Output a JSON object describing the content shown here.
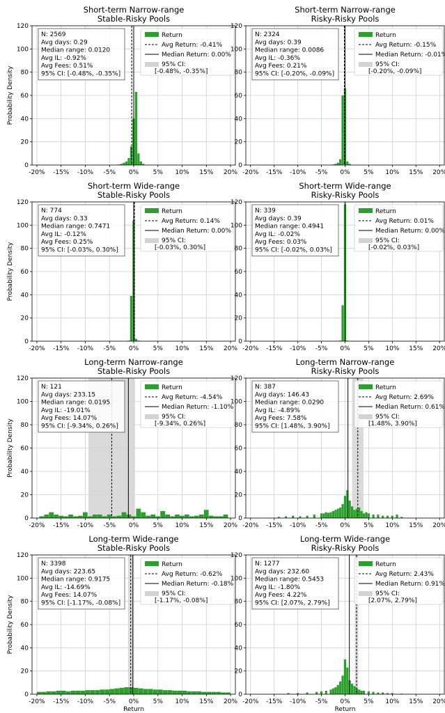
{
  "figure": {
    "ylabel": "Probability Density",
    "xlabel": "Return",
    "colors": {
      "bar": "#2ca02c",
      "ci": "#d3d3d3",
      "line": "#000000"
    }
  },
  "chart_data": [
    {
      "type": "bar",
      "title": [
        "Short-term Narrow-range",
        "Stable-Risky Pools"
      ],
      "xlabel": "",
      "ylabel": "Probability Density",
      "xlim": [
        -0.21,
        0.21
      ],
      "ylim": [
        0,
        120
      ],
      "xticks": [
        -0.2,
        -0.15,
        -0.1,
        -0.05,
        0,
        0.05,
        0.1,
        0.15,
        0.2
      ],
      "xtick_labels": [
        "-20%",
        "-15%",
        "-10%",
        "-5%",
        "0%",
        "5%",
        "10%",
        "15%",
        "20%"
      ],
      "yticks": [
        0,
        20,
        40,
        60,
        80,
        100,
        120
      ],
      "grid": true,
      "legend": "top-right",
      "stats": [
        "N: 2569",
        "Avg days: 0.29",
        "Median range: 0.0120",
        "Avg IL: -0.92%",
        "Avg Fees: 0.51%",
        "95% CI: [-0.48%, -0.35%]"
      ],
      "legend_entries": [
        "Return",
        "Avg Return: -0.41%",
        "Median Return: 0.00%",
        "95% CI:",
        "[-0.48%, -0.35%]"
      ],
      "avg": -0.0041,
      "median": 0.0,
      "ci": [
        -0.0048,
        -0.0035
      ],
      "bin_width": 0.005,
      "x": [
        -0.03,
        -0.025,
        -0.02,
        -0.015,
        -0.01,
        -0.005,
        0.0,
        0.005,
        0.01,
        0.015,
        0.02
      ],
      "values": [
        0.5,
        1,
        2,
        3,
        6,
        16,
        40,
        63,
        10,
        3,
        1
      ]
    },
    {
      "type": "bar",
      "title": [
        "Short-term Narrow-range",
        "Risky-Risky Pools"
      ],
      "xlabel": "",
      "ylabel": "",
      "xlim": [
        -0.21,
        0.21
      ],
      "ylim": [
        0,
        120
      ],
      "xticks": [
        -0.2,
        -0.15,
        -0.1,
        -0.05,
        0,
        0.05,
        0.1,
        0.15,
        0.2
      ],
      "xtick_labels": [
        "-20%",
        "-15%",
        "-10%",
        "-5%",
        "0%",
        "5%",
        "10%",
        "15%",
        "20%"
      ],
      "yticks": [
        0,
        20,
        40,
        60,
        80,
        100,
        120
      ],
      "grid": true,
      "legend": "top-right",
      "stats": [
        "N: 2324",
        "Avg days: 0.39",
        "Median range: 0.0086",
        "Avg IL: -0.36%",
        "Avg Fees: 0.21%",
        "95% CI: [-0.20%, -0.09%]"
      ],
      "legend_entries": [
        "Return",
        "Avg Return: -0.15%",
        "Median Return: -0.01%",
        "95% CI:",
        "[-0.20%, -0.09%]"
      ],
      "avg": -0.0015,
      "median": -0.0001,
      "ci": [
        -0.002,
        -0.0009
      ],
      "bin_width": 0.005,
      "x": [
        -0.025,
        -0.02,
        -0.015,
        -0.01,
        -0.005,
        0.0,
        0.005,
        0.01
      ],
      "values": [
        0.5,
        1,
        2,
        5,
        60,
        66,
        3,
        1
      ]
    },
    {
      "type": "bar",
      "title": [
        "Short-term Wide-range",
        "Stable-Risky Pools"
      ],
      "xlabel": "",
      "ylabel": "Probability Density",
      "xlim": [
        -0.21,
        0.21
      ],
      "ylim": [
        0,
        120
      ],
      "xticks": [
        -0.2,
        -0.15,
        -0.1,
        -0.05,
        0,
        0.05,
        0.1,
        0.15,
        0.2
      ],
      "xtick_labels": [
        "-20%",
        "-15%",
        "-10%",
        "-5%",
        "0%",
        "5%",
        "10%",
        "15%",
        "20%"
      ],
      "yticks": [
        0,
        20,
        40,
        60,
        80,
        100,
        120
      ],
      "grid": true,
      "legend": "top-right",
      "stats": [
        "N: 774",
        "Avg days: 0.33",
        "Median range: 0.7471",
        "Avg IL: -0.12%",
        "Avg Fees: 0.25%",
        "95% CI: [-0.03%, 0.30%]"
      ],
      "legend_entries": [
        "Return",
        "Avg Return: 0.14%",
        "Median Return: 0.00%",
        "95% CI:",
        "[-0.03%, 0.30%]"
      ],
      "avg": 0.0014,
      "median": 0.0,
      "ci": [
        -0.0003,
        0.003
      ],
      "bin_width": 0.005,
      "x": [
        -0.01,
        -0.005,
        0.0,
        0.005,
        0.01
      ],
      "values": [
        0.5,
        39,
        104,
        2,
        0.5
      ]
    },
    {
      "type": "bar",
      "title": [
        "Short-term Wide-range",
        "Risky-Risky Pools"
      ],
      "xlabel": "",
      "ylabel": "",
      "xlim": [
        -0.21,
        0.21
      ],
      "ylim": [
        0,
        120
      ],
      "xticks": [
        -0.2,
        -0.15,
        -0.1,
        -0.05,
        0,
        0.05,
        0.1,
        0.15,
        0.2
      ],
      "xtick_labels": [
        "-20%",
        "-15%",
        "-10%",
        "-5%",
        "0%",
        "5%",
        "10%",
        "15%",
        "20%"
      ],
      "yticks": [
        0,
        20,
        40,
        60,
        80,
        100,
        120
      ],
      "grid": true,
      "legend": "top-right",
      "stats": [
        "N: 339",
        "Avg days: 0.39",
        "Median range: 0.4941",
        "Avg IL: -0.02%",
        "Avg Fees: 0.03%",
        "95% CI: [-0.02%, 0.03%]"
      ],
      "legend_entries": [
        "Return",
        "Avg Return: 0.01%",
        "Median Return: 0.00%",
        "95% CI:",
        "[-0.02%, 0.03%]"
      ],
      "avg": 0.0001,
      "median": 0.0,
      "ci": [
        -0.0002,
        0.0003
      ],
      "bin_width": 0.005,
      "x": [
        -0.01,
        -0.005,
        0.0,
        0.005
      ],
      "values": [
        0.5,
        31,
        118,
        0.5
      ]
    },
    {
      "type": "bar",
      "title": [
        "Long-term Narrow-range",
        "Stable-Risky Pools"
      ],
      "xlabel": "",
      "ylabel": "Probability Density",
      "xlim": [
        -0.21,
        0.21
      ],
      "ylim": [
        0,
        120
      ],
      "xticks": [
        -0.2,
        -0.15,
        -0.1,
        -0.05,
        0,
        0.05,
        0.1,
        0.15,
        0.2
      ],
      "xtick_labels": [
        "-20%",
        "-15%",
        "-10%",
        "-5%",
        "0%",
        "5%",
        "10%",
        "15%",
        "20%"
      ],
      "yticks": [
        0,
        20,
        40,
        60,
        80,
        100,
        120
      ],
      "grid": true,
      "legend": "top-right",
      "stats": [
        "N: 121",
        "Avg days: 233.15",
        "Median range: 0.0195",
        "Avg IL: -19.01%",
        "Avg Fees: 14.07%",
        "95% CI: [-9.34%, 0.26%]"
      ],
      "legend_entries": [
        "Return",
        "Avg Return: -4.54%",
        "Median Return: -1.10%",
        "95% CI:",
        "[-9.34%, 0.26%]"
      ],
      "avg": -0.0454,
      "median": -0.011,
      "ci": [
        -0.0934,
        0.0026
      ],
      "bin_width": 0.01,
      "x": [
        -0.19,
        -0.18,
        -0.17,
        -0.16,
        -0.15,
        -0.14,
        -0.13,
        -0.12,
        -0.11,
        -0.1,
        -0.09,
        -0.08,
        -0.07,
        -0.06,
        -0.05,
        -0.04,
        -0.03,
        -0.02,
        -0.01,
        0.0,
        0.01,
        0.02,
        0.03,
        0.04,
        0.05,
        0.06,
        0.07,
        0.08,
        0.09,
        0.1,
        0.11,
        0.12,
        0.13,
        0.14,
        0.15,
        0.16,
        0.17,
        0.18,
        0.19
      ],
      "values": [
        1.5,
        3,
        5,
        3,
        2,
        1.5,
        3,
        1.5,
        2,
        5,
        1.5,
        3,
        3,
        1.5,
        3,
        1.5,
        2,
        5,
        3,
        1.5,
        8,
        5,
        2,
        3,
        1.5,
        6,
        3,
        1.5,
        3,
        2,
        3,
        1.5,
        2,
        3,
        7,
        2,
        1.5,
        1.5,
        3
      ]
    },
    {
      "type": "bar",
      "title": [
        "Long-term Narrow-range",
        "Risky-Risky Pools"
      ],
      "xlabel": "",
      "ylabel": "",
      "xlim": [
        -0.21,
        0.21
      ],
      "ylim": [
        0,
        120
      ],
      "xticks": [
        -0.2,
        -0.15,
        -0.1,
        -0.05,
        0,
        0.05,
        0.1,
        0.15,
        0.2
      ],
      "xtick_labels": [
        "-20%",
        "-15%",
        "-10%",
        "-5%",
        "0%",
        "5%",
        "10%",
        "15%",
        "20%"
      ],
      "yticks": [
        0,
        20,
        40,
        60,
        80,
        100,
        120
      ],
      "grid": true,
      "legend": "top-right",
      "stats": [
        "N: 387",
        "Avg days: 146.43",
        "Median range: 0.0290",
        "Avg IL: -4.89%",
        "Avg Fees: 7.58%",
        "95% CI: [1.48%, 3.90%]"
      ],
      "legend_entries": [
        "Return",
        "Avg Return: 2.69%",
        "Median Return: 0.61%",
        "95% CI:",
        "[1.48%, 3.90%]"
      ],
      "avg": 0.0269,
      "median": 0.0061,
      "ci": [
        0.0148,
        0.039
      ],
      "bin_width": 0.005,
      "x": [
        -0.14,
        -0.125,
        -0.11,
        -0.095,
        -0.08,
        -0.065,
        -0.05,
        -0.045,
        -0.04,
        -0.035,
        -0.03,
        -0.025,
        -0.02,
        -0.015,
        -0.01,
        -0.005,
        0.0,
        0.005,
        0.01,
        0.015,
        0.02,
        0.025,
        0.03,
        0.035,
        0.04,
        0.045,
        0.05,
        0.06,
        0.07,
        0.08,
        0.09,
        0.1,
        0.11,
        0.12
      ],
      "values": [
        1,
        1.5,
        2,
        1.5,
        2,
        3,
        4,
        4,
        5,
        4.5,
        5,
        6,
        7,
        8,
        9,
        12,
        19,
        24,
        15,
        10,
        7,
        8,
        9,
        6,
        4,
        5,
        4,
        3,
        3,
        2,
        2,
        2,
        3,
        1
      ]
    },
    {
      "type": "bar",
      "title": [
        "Long-term Wide-range",
        "Stable-Risky Pools"
      ],
      "xlabel": "Return",
      "ylabel": "Probability Density",
      "xlim": [
        -0.21,
        0.21
      ],
      "ylim": [
        0,
        120
      ],
      "xticks": [
        -0.2,
        -0.15,
        -0.1,
        -0.05,
        0,
        0.05,
        0.1,
        0.15,
        0.2
      ],
      "xtick_labels": [
        "-20%",
        "-15%",
        "-10%",
        "-5%",
        "0%",
        "5%",
        "10%",
        "15%",
        "20%"
      ],
      "yticks": [
        0,
        20,
        40,
        60,
        80,
        100,
        120
      ],
      "grid": true,
      "legend": "top-right",
      "stats": [
        "N: 3398",
        "Avg days: 223.65",
        "Median range: 0.9175",
        "Avg IL: -14.69%",
        "Avg Fees: 14.07%",
        "95% CI: [-1.17%, -0.08%]"
      ],
      "legend_entries": [
        "Return",
        "Avg Return: -0.62%",
        "Median Return: -0.18%",
        "95% CI:",
        "[-1.17%, -0.08%]"
      ],
      "avg": -0.0062,
      "median": -0.0018,
      "ci": [
        -0.0117,
        -0.0008
      ],
      "bin_width": 0.01,
      "x": [
        -0.195,
        -0.185,
        -0.175,
        -0.165,
        -0.155,
        -0.145,
        -0.135,
        -0.125,
        -0.115,
        -0.105,
        -0.095,
        -0.085,
        -0.075,
        -0.065,
        -0.055,
        -0.045,
        -0.035,
        -0.025,
        -0.015,
        -0.005,
        0.005,
        0.015,
        0.025,
        0.035,
        0.045,
        0.055,
        0.065,
        0.075,
        0.085,
        0.095,
        0.105,
        0.115,
        0.125,
        0.135,
        0.145,
        0.155,
        0.165,
        0.175,
        0.185,
        0.195
      ],
      "values": [
        2,
        2,
        2.5,
        2.5,
        3,
        3,
        2.5,
        3,
        3,
        3,
        3.5,
        3.5,
        3.5,
        4,
        4,
        4.5,
        5,
        5.5,
        6,
        6,
        5.5,
        5,
        4.5,
        4.5,
        4,
        4,
        3.5,
        3.5,
        3,
        3,
        3,
        2.5,
        2.5,
        2.5,
        2,
        2,
        2,
        2,
        1.5,
        1.5
      ]
    },
    {
      "type": "bar",
      "title": [
        "Long-term Wide-range",
        "Risky-Risky Pools"
      ],
      "xlabel": "Return",
      "ylabel": "",
      "xlim": [
        -0.21,
        0.21
      ],
      "ylim": [
        0,
        120
      ],
      "xticks": [
        -0.2,
        -0.15,
        -0.1,
        -0.05,
        0,
        0.05,
        0.1,
        0.15,
        0.2
      ],
      "xtick_labels": [
        "-20%",
        "-15%",
        "-10%",
        "-5%",
        "0%",
        "5%",
        "10%",
        "15%",
        "20%"
      ],
      "yticks": [
        0,
        20,
        40,
        60,
        80,
        100,
        120
      ],
      "grid": true,
      "legend": "top-right",
      "stats": [
        "N: 1277",
        "Avg days: 232.60",
        "Median range: 0.5453",
        "Avg IL: -1.80%",
        "Avg Fees: 4.22%",
        "95% CI: [2.07%, 2.79%]"
      ],
      "legend_entries": [
        "Return",
        "Avg Return: 2.43%",
        "Median Return: 0.91%",
        "95% CI:",
        "[2.07%, 2.79%]"
      ],
      "avg": 0.0243,
      "median": 0.0091,
      "ci": [
        0.0207,
        0.0279
      ],
      "bin_width": 0.005,
      "x": [
        -0.12,
        -0.1,
        -0.08,
        -0.06,
        -0.05,
        -0.04,
        -0.03,
        -0.025,
        -0.02,
        -0.015,
        -0.01,
        -0.005,
        0.0,
        0.005,
        0.01,
        0.015,
        0.02,
        0.025,
        0.03,
        0.035,
        0.04,
        0.05,
        0.06,
        0.07,
        0.08,
        0.09,
        0.1,
        0.12
      ],
      "values": [
        1,
        1,
        1.5,
        2,
        2.5,
        3,
        4,
        5,
        6,
        8,
        11,
        16,
        30,
        23,
        12,
        9,
        7,
        5,
        4,
        3,
        3,
        2.5,
        2,
        1.5,
        1.5,
        1,
        1,
        0.5
      ]
    }
  ]
}
